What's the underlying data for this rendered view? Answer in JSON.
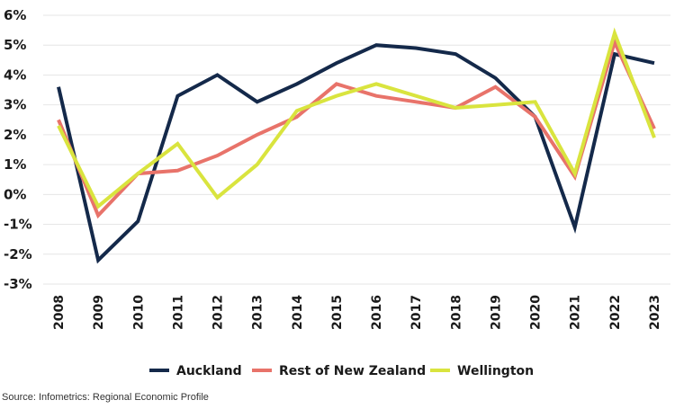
{
  "chart_data": {
    "type": "line",
    "categories": [
      "2008",
      "2009",
      "2010",
      "2011",
      "2012",
      "2013",
      "2014",
      "2015",
      "2016",
      "2017",
      "2018",
      "2019",
      "2020",
      "2021",
      "2022",
      "2023"
    ],
    "yticks": [
      "-3%",
      "-2%",
      "-1%",
      "0%",
      "1%",
      "2%",
      "3%",
      "4%",
      "5%",
      "6%"
    ],
    "ylim": [
      -3,
      6
    ],
    "grid": true,
    "legend_position": "bottom",
    "series": [
      {
        "name": "Auckland",
        "color": "#14294a",
        "values": [
          3.6,
          -2.2,
          -0.9,
          3.3,
          4.0,
          3.1,
          3.7,
          4.4,
          5.0,
          4.9,
          4.7,
          3.9,
          2.6,
          -1.1,
          4.7,
          4.4
        ]
      },
      {
        "name": "Rest of New Zealand",
        "color": "#e8736a",
        "values": [
          2.5,
          -0.7,
          0.7,
          0.8,
          1.3,
          2.0,
          2.6,
          3.7,
          3.3,
          3.1,
          2.9,
          3.6,
          2.6,
          0.6,
          5.1,
          2.2
        ]
      },
      {
        "name": "Wellington",
        "color": "#d9e43e",
        "values": [
          2.3,
          -0.4,
          0.7,
          1.7,
          -0.1,
          1.0,
          2.8,
          3.3,
          3.7,
          3.3,
          2.9,
          3.0,
          3.1,
          0.7,
          5.4,
          1.9
        ]
      }
    ]
  },
  "source": "Source: Infometrics: Regional Economic Profile"
}
